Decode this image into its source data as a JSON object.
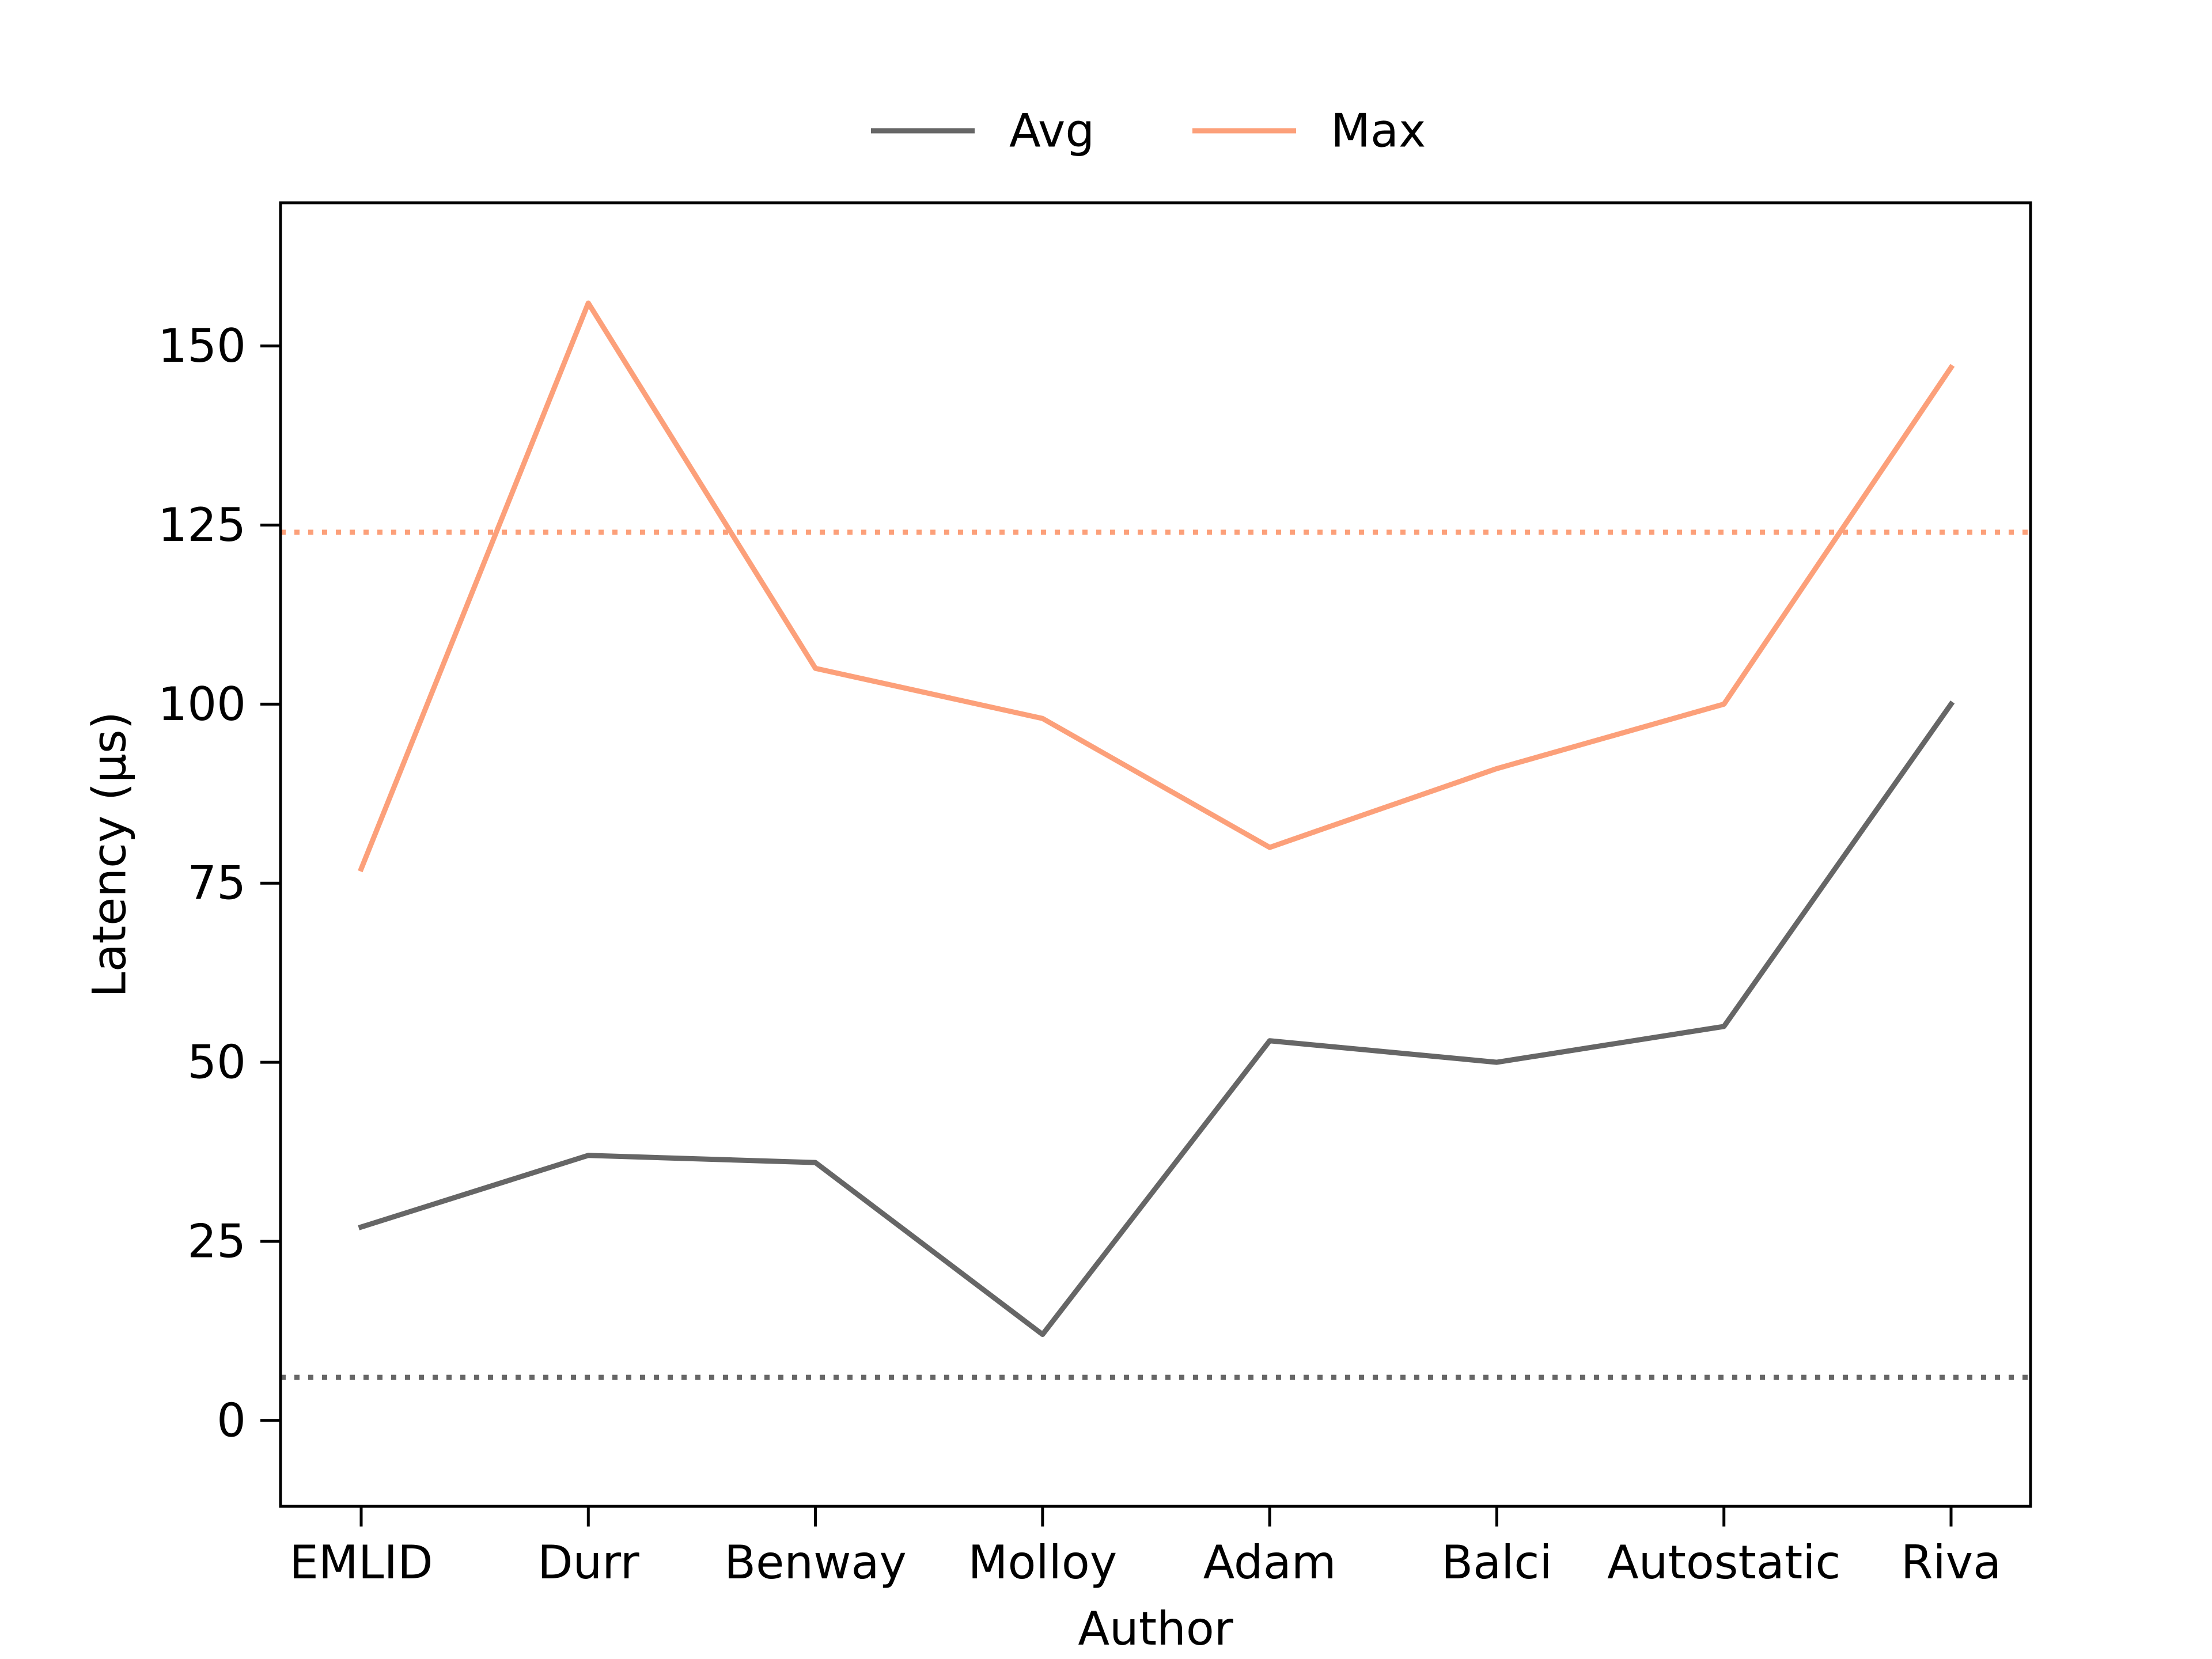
{
  "chart_data": {
    "type": "line",
    "title": "",
    "xlabel": "Author",
    "ylabel": "Latency (µs)",
    "categories": [
      "EMLID",
      "Durr",
      "Benway",
      "Molloy",
      "Adam",
      "Balci",
      "Autostatic",
      "Riva"
    ],
    "series": [
      {
        "name": "Avg",
        "color": "#666666",
        "values": [
          27,
          37,
          36,
          12,
          53,
          50,
          55,
          100
        ]
      },
      {
        "name": "Max",
        "color": "#fca07a",
        "values": [
          77,
          156,
          105,
          98,
          80,
          91,
          100,
          147
        ]
      }
    ],
    "reference_lines": [
      {
        "series": "Avg",
        "y": 6,
        "style": "dotted",
        "color": "#666666"
      },
      {
        "series": "Max",
        "y": 124,
        "style": "dotted",
        "color": "#fca07a"
      }
    ],
    "ylim": [
      -12,
      170
    ],
    "yticks": [
      0,
      25,
      50,
      75,
      100,
      125,
      150
    ],
    "grid": false,
    "legend_position": "top-center"
  }
}
